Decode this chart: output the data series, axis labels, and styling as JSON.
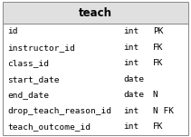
{
  "title": "teach",
  "header_bg": "#e0e0e0",
  "border_color": "#888888",
  "rows": [
    {
      "field": "id",
      "type": "int",
      "constraint": "PK"
    },
    {
      "field": "instructor_id",
      "type": "int",
      "constraint": "FK"
    },
    {
      "field": "class_id",
      "type": "int",
      "constraint": "FK"
    },
    {
      "field": "start_date",
      "type": "date",
      "constraint": ""
    },
    {
      "field": "end_date",
      "type": "date",
      "constraint": "N"
    },
    {
      "field": "drop_teach_reason_id",
      "type": "int",
      "constraint": "N FK"
    },
    {
      "field": "teach_outcome_id",
      "type": "int",
      "constraint": "FK"
    }
  ],
  "row_bg": "#ffffff",
  "text_color": "#000000",
  "font_size": 6.8,
  "title_font_size": 8.5,
  "figsize": [
    2.11,
    1.51
  ],
  "dpi": 100
}
